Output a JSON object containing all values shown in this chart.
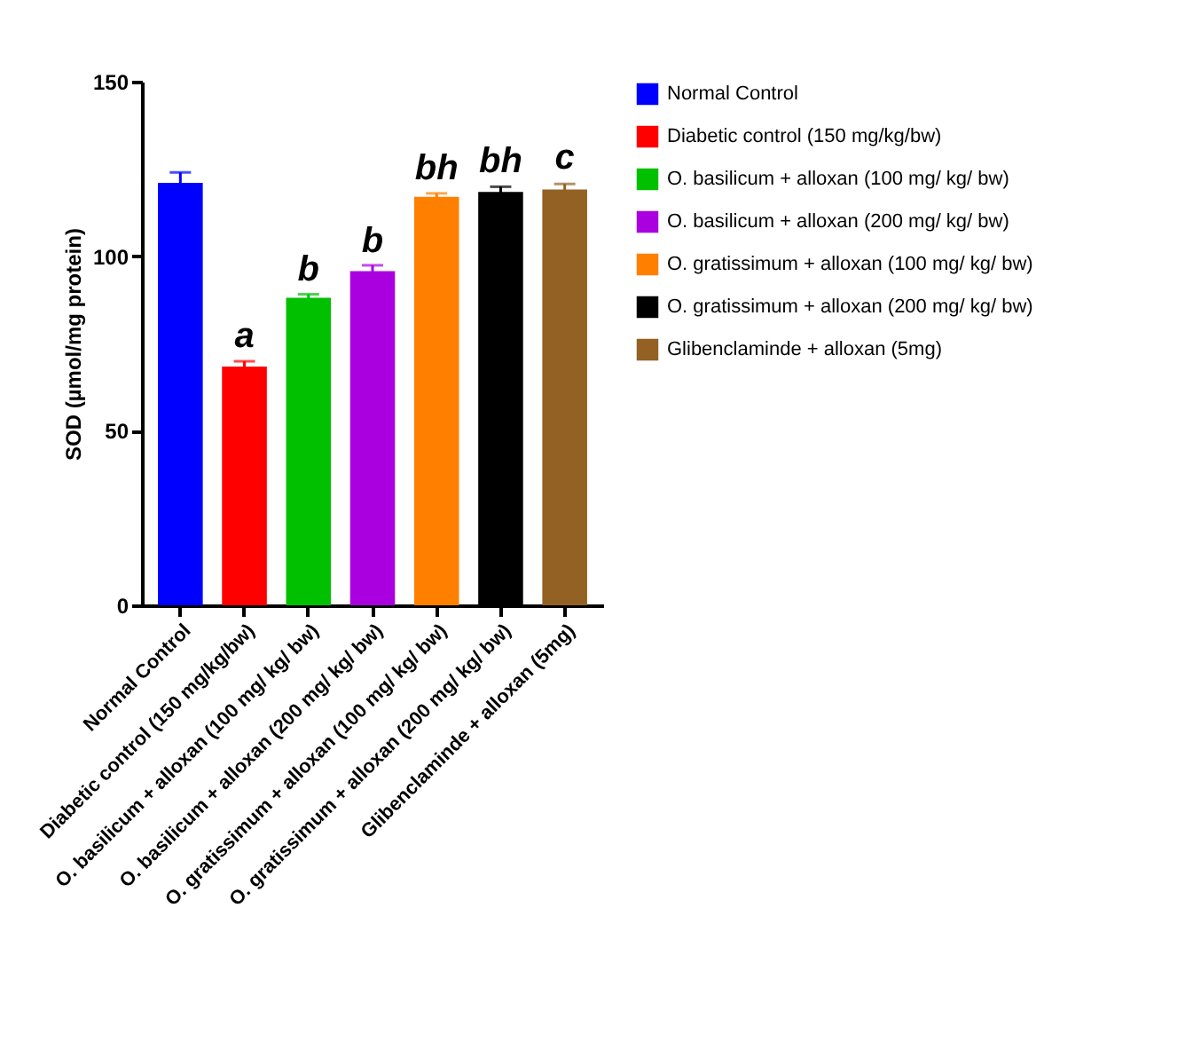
{
  "chart_data": {
    "type": "bar",
    "ylabel": "SOD (µmol/mg protein)",
    "categories": [
      "Normal Control",
      "Diabetic control (150 mg/kg/bw)",
      "O. basilicum + alloxan (100 mg/ kg/ bw)",
      "O. basilicum + alloxan (200 mg/ kg/ bw)",
      "O. gratissimum + alloxan (100 mg/ kg/ bw)",
      "O. gratissimum + alloxan (200 mg/ kg/ bw)",
      "Glibenclaminde + alloxan (5mg)"
    ],
    "series": [
      {
        "name": "Normal Control",
        "color": "#0000ff",
        "values": [
          121,
          null,
          null,
          null,
          null,
          null,
          null
        ],
        "errors": [
          3,
          null,
          null,
          null,
          null,
          null,
          null
        ]
      },
      {
        "name": "Diabetic control (150 mg/kg/bw)",
        "color": "#ff0000",
        "values": [
          null,
          68.4,
          null,
          null,
          null,
          null,
          null
        ],
        "errors": [
          null,
          1.5,
          null,
          null,
          null,
          null,
          null
        ]
      },
      {
        "name": "O. basilicum + alloxan (100 mg/ kg/ bw)",
        "color": "#00c000",
        "values": [
          null,
          null,
          88.1,
          null,
          null,
          null,
          null
        ],
        "errors": [
          null,
          null,
          1,
          null,
          null,
          null,
          null
        ]
      },
      {
        "name": "O. basilicum + alloxan (200 mg/ kg/ bw)",
        "color": "#aa00e0",
        "values": [
          null,
          null,
          null,
          95.7,
          null,
          null,
          null
        ],
        "errors": [
          null,
          null,
          null,
          1.7,
          null,
          null,
          null
        ]
      },
      {
        "name": "O. gratissimum + alloxan (100 mg/ kg/ bw)",
        "color": "#ff8000",
        "values": [
          null,
          null,
          null,
          null,
          117,
          null,
          null
        ],
        "errors": [
          null,
          null,
          null,
          null,
          1,
          null,
          null
        ]
      },
      {
        "name": "O. gratissimum + alloxan (200 mg/ kg/ bw)",
        "color": "#000000",
        "values": [
          null,
          null,
          null,
          null,
          null,
          118.4,
          null
        ],
        "errors": [
          null,
          null,
          null,
          null,
          null,
          1.5,
          null
        ]
      },
      {
        "name": "Glibenclaminde + alloxan (5mg)",
        "color": "#936123",
        "values": [
          null,
          null,
          null,
          null,
          null,
          null,
          119.1
        ],
        "errors": [
          null,
          null,
          null,
          null,
          null,
          null,
          1.6
        ]
      }
    ],
    "ylim": [
      0,
      150
    ],
    "yticks": [
      0,
      50,
      100,
      150
    ],
    "grid": false,
    "legend": "right",
    "annotations": [
      {
        "text": "a",
        "x": "Diabetic control (150 mg/kg/bw)",
        "y": 70
      },
      {
        "text": "b",
        "x": "O. basilicum + alloxan (100 mg/ kg/ bw)",
        "y": 89
      },
      {
        "text": "b",
        "x": "O. basilicum + alloxan (200 mg/ kg/ bw)",
        "y": 97
      },
      {
        "text": "bh",
        "x": "O. gratissimum + alloxan (100 mg/ kg/ bw)",
        "y": 118
      },
      {
        "text": "bh",
        "x": "O. gratissimum + alloxan (200 mg/ kg/ bw)",
        "y": 120
      },
      {
        "text": "c",
        "x": "Glibenclaminde + alloxan (5mg)",
        "y": 121
      }
    ]
  }
}
